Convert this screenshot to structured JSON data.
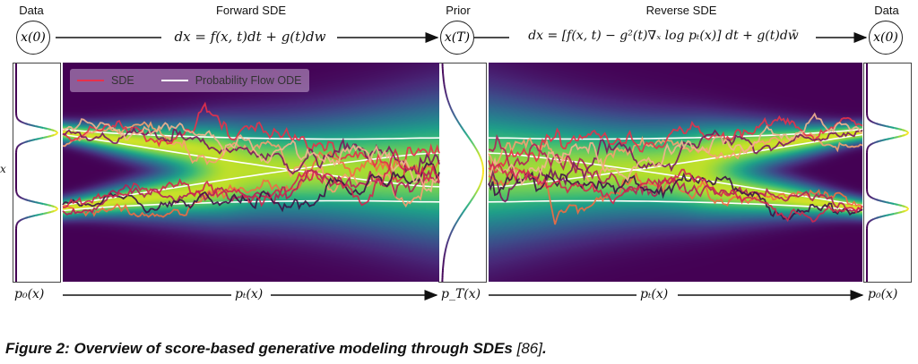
{
  "header": {
    "data_left_label": "Data",
    "forward_label": "Forward SDE",
    "prior_label": "Prior",
    "reverse_label": "Reverse SDE",
    "data_right_label": "Data"
  },
  "nodes": {
    "x0_left": "x(0)",
    "xT": "x(T)",
    "x0_right": "x(0)"
  },
  "equations": {
    "forward": "dx = f(x, t)dt + g(t)dw",
    "reverse": "dx = [f(x, t) − g²(t)∇ₓ log pₜ(x)] dt + g(t)dw̄"
  },
  "legend": {
    "sde_label": "SDE",
    "ode_label": "Probability Flow ODE",
    "sde_color": "#e8304a",
    "ode_color": "#ffffff"
  },
  "axis": {
    "y_label": "x"
  },
  "bottom": {
    "p0_left": "p₀(x)",
    "pt_forward": "pₜ(x)",
    "pT": "p_T(x)",
    "pt_reverse": "pₜ(x)",
    "p0_right": "p₀(x)"
  },
  "colors": {
    "colormap": "viridis",
    "background_low": "#440154",
    "peak": "#fde725"
  },
  "caption": {
    "text": "Figure 2: Overview of score-based generative modeling through SDEs ",
    "ref": "[86]",
    "end": "."
  }
}
